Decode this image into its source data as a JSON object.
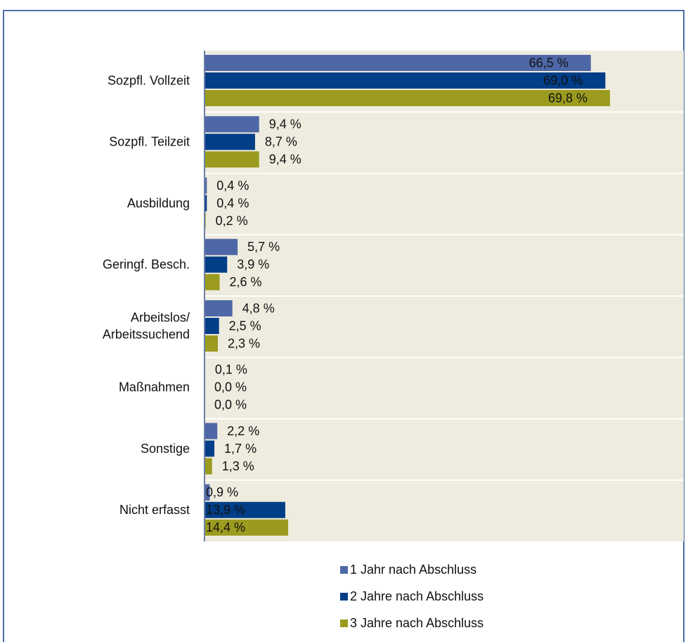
{
  "chart_data": {
    "type": "bar",
    "orientation": "horizontal",
    "categories": [
      "Sozpfl. Vollzeit",
      "Sozpfl. Teilzeit",
      "Ausbildung",
      "Geringf. Besch.",
      "Arbeitslos/\nArbeitssuchend",
      "Maßnahmen",
      "Sonstige",
      "Nicht erfasst"
    ],
    "series": [
      {
        "name": "1 Jahr nach Abschluss",
        "color": "#4e67a6",
        "values": [
          66.5,
          9.4,
          0.4,
          5.7,
          4.8,
          0.1,
          2.2,
          0.9
        ],
        "value_labels": [
          "66,5 %",
          "9,4 %",
          "0,4 %",
          "5,7 %",
          "4,8 %",
          "0,1 %",
          "2,2 %",
          "0,9 %"
        ]
      },
      {
        "name": "2 Jahre nach Abschluss",
        "color": "#003e87",
        "values": [
          69.0,
          8.7,
          0.4,
          3.9,
          2.5,
          0.0,
          1.7,
          13.9
        ],
        "value_labels": [
          "69,0 %",
          "8,7 %",
          "0,4 %",
          "3,9 %",
          "2,5 %",
          "0,0 %",
          "1,7 %",
          "13,9 %"
        ]
      },
      {
        "name": "3 Jahre nach Abschluss",
        "color": "#9b9b1f",
        "values": [
          69.8,
          9.4,
          0.2,
          2.6,
          2.3,
          0.0,
          1.3,
          14.4
        ],
        "value_labels": [
          "69,8 %",
          "9,4 %",
          "0,2 %",
          "2,6 %",
          "2,3 %",
          "0,0 %",
          "1,3 %",
          "14,4 %"
        ]
      }
    ],
    "xlim": [
      0,
      82.5
    ],
    "legend": "bottom"
  }
}
